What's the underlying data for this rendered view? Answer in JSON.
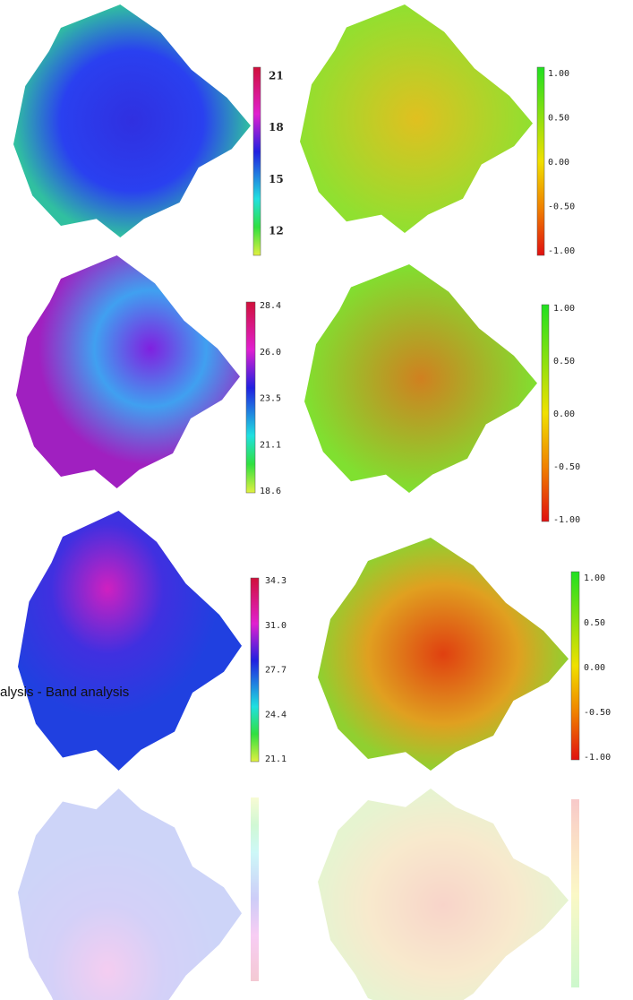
{
  "panels": [
    {
      "ticks": [
        "21",
        "18",
        "15",
        "12"
      ]
    },
    {
      "ticks": [
        "1.00",
        "0.50",
        "0.00",
        "-0.50",
        "-1.00"
      ]
    },
    {
      "ticks": [
        "28.4",
        "26.0",
        "23.5",
        "21.1",
        "18.6"
      ]
    },
    {
      "ticks": [
        "1.00",
        "0.50",
        "0.00",
        "-0.50",
        "-1.00"
      ]
    },
    {
      "ticks": [
        "34.3",
        "31.0",
        "27.7",
        "24.4",
        "21.1"
      ]
    },
    {
      "ticks": [
        "1.00",
        "0.50",
        "0.00",
        "-0.50",
        "-1.00"
      ]
    }
  ],
  "caption": "alysis - Band analysis"
}
